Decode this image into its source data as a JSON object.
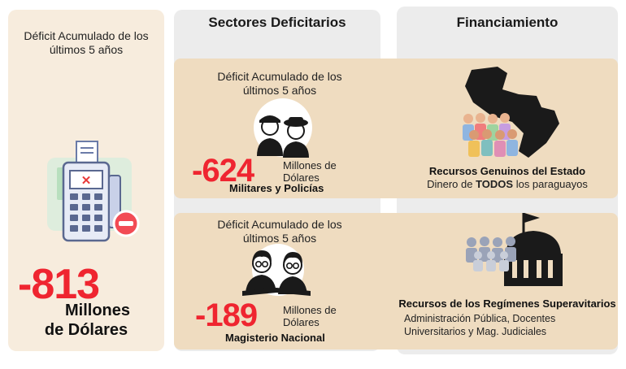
{
  "left": {
    "caption_line1": "Déficit Acumulado de los",
    "caption_line2": "últimos 5 años",
    "amount": "-813",
    "unit_line1": "Millones",
    "unit_line2": "de Dólares"
  },
  "sectors": {
    "title": "Sectores Deficitarios",
    "military": {
      "caption_line1": "Déficit Acumulado de los",
      "caption_line2": "últimos 5 años",
      "amount": "-624",
      "unit_line1": "Millones de",
      "unit_line2": "Dólares",
      "label": "Militares y Policías"
    },
    "teachers": {
      "caption_line1": "Déficit Acumulado de los",
      "caption_line2": "últimos 5 años",
      "amount": "-189",
      "unit_line1": "Millones de",
      "unit_line2": "Dólares",
      "label": "Magisterio Nacional"
    }
  },
  "financing": {
    "title": "Financiamiento",
    "genuine": {
      "title": "Recursos Genuinos del Estado",
      "sub_pre": "Dinero de ",
      "sub_bold": "TODOS",
      "sub_post": " los paraguayos"
    },
    "surplus": {
      "title": "Recursos de los Regímenes Superavitarios",
      "desc_line1": "Administración Pública, Docentes",
      "desc_line2": "Universitarios  y Mag. Judiciales"
    }
  },
  "colors": {
    "accent_red": "#ef2530",
    "band": "#efdcc0",
    "left_panel": "#f7ecdd",
    "column_bg": "#ececec"
  },
  "icons": [
    "pos-terminal-icon",
    "minus-badge-icon",
    "military-police-icon",
    "teachers-icon",
    "paraguay-map-icon",
    "crowd-icon",
    "government-building-icon"
  ]
}
